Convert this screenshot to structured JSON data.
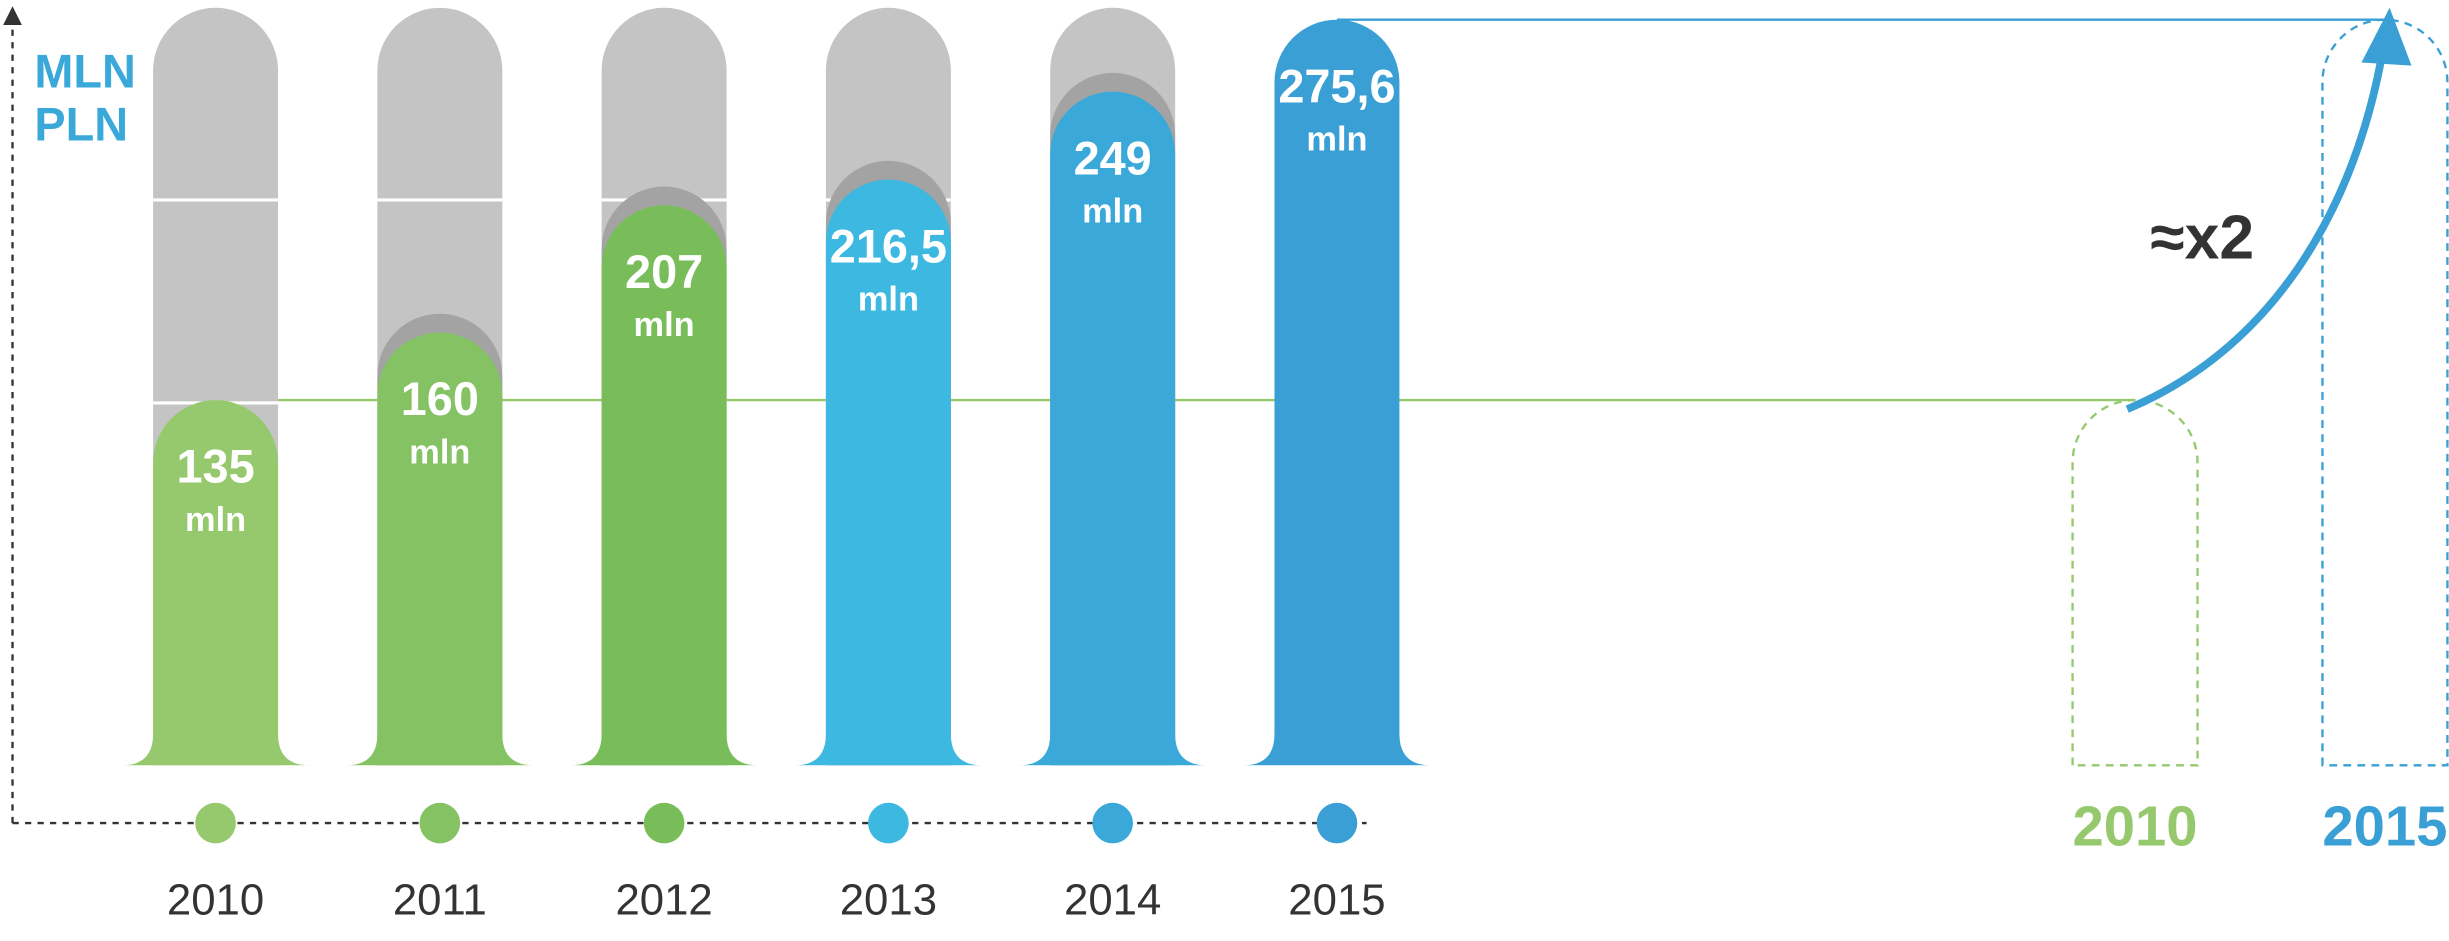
{
  "chart_data": {
    "type": "bar",
    "y_label": [
      "MLN",
      "PLN"
    ],
    "categories": [
      "2010",
      "2011",
      "2012",
      "2013",
      "2014",
      "2015"
    ],
    "values": [
      135,
      160,
      207,
      216.5,
      249,
      275.6
    ],
    "value_labels": [
      "135",
      "160",
      "207",
      "216,5",
      "249",
      "275,6"
    ],
    "unit_label": "mln",
    "colors": [
      "#96c96e",
      "#84c263",
      "#79bd5b",
      "#3db8e0",
      "#3aa9da",
      "#3a9fd4"
    ],
    "ylim": [
      0,
      280
    ],
    "annotation": "≈x2"
  }
}
